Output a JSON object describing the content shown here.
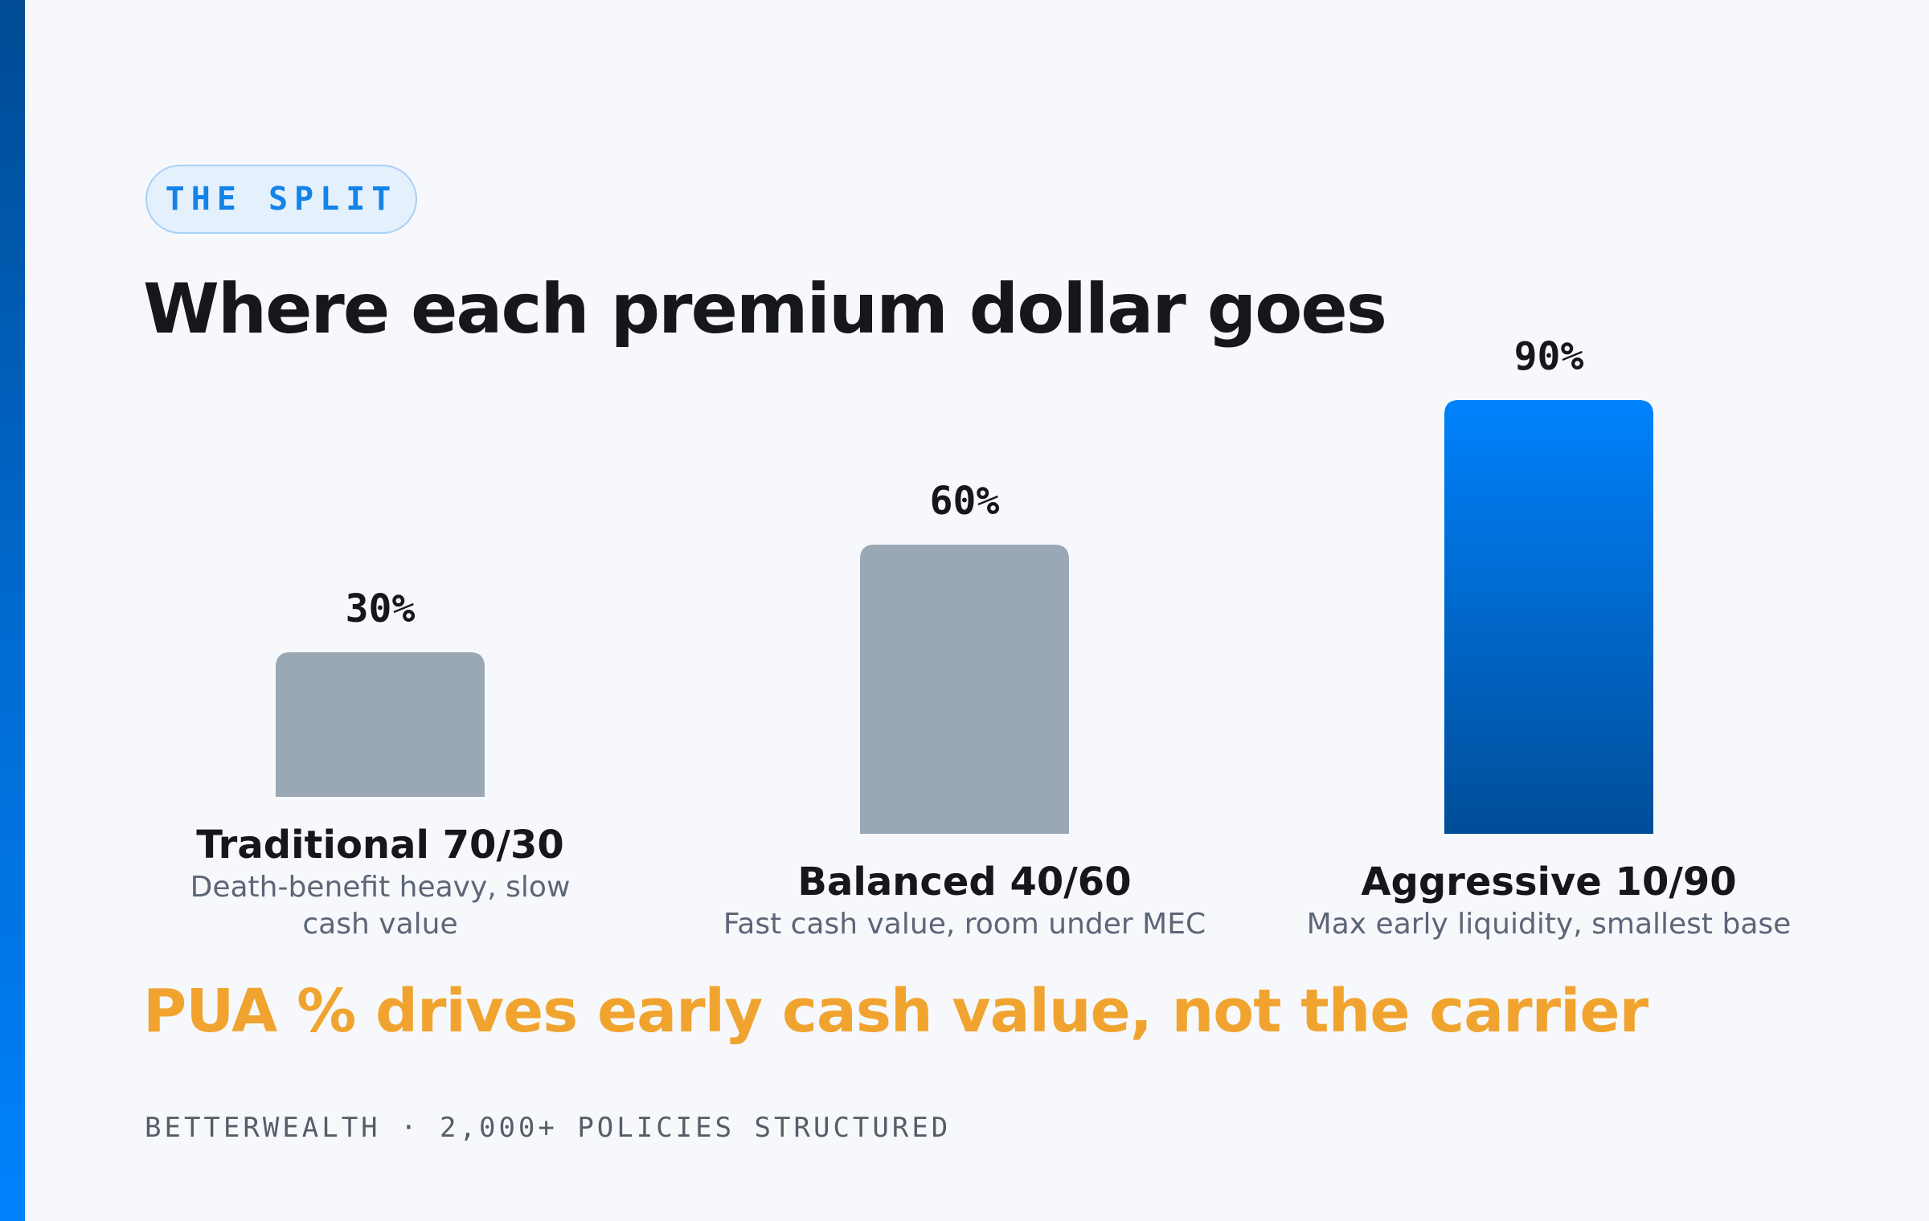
{
  "badge": {
    "label": "THE SPLIT"
  },
  "title": "Where each premium dollar goes",
  "colors": {
    "bar_default": "#9aa8b6",
    "bar_highlight_top": "#0082fc",
    "bar_highlight_bottom": "#004d98",
    "callout": "#f0a42f",
    "accent": "#1383ea"
  },
  "chart_data": {
    "type": "bar",
    "categories": [
      "Traditional 70/30",
      "Balanced 40/60",
      "Aggressive 10/90"
    ],
    "descriptions": [
      "Death-benefit heavy, slow cash value",
      "Fast cash value, room under MEC",
      "Max early liquidity, smallest base"
    ],
    "values": [
      30,
      60,
      90
    ],
    "value_labels": [
      "30%",
      "60%",
      "90%"
    ],
    "highlight_index": 2,
    "unit": "%",
    "ylim": [
      0,
      100
    ],
    "grid": false,
    "legend": "none"
  },
  "callout": "PUA % drives early cash value, not the carrier",
  "footer": "BETTERWEALTH · 2,000+ POLICIES STRUCTURED"
}
